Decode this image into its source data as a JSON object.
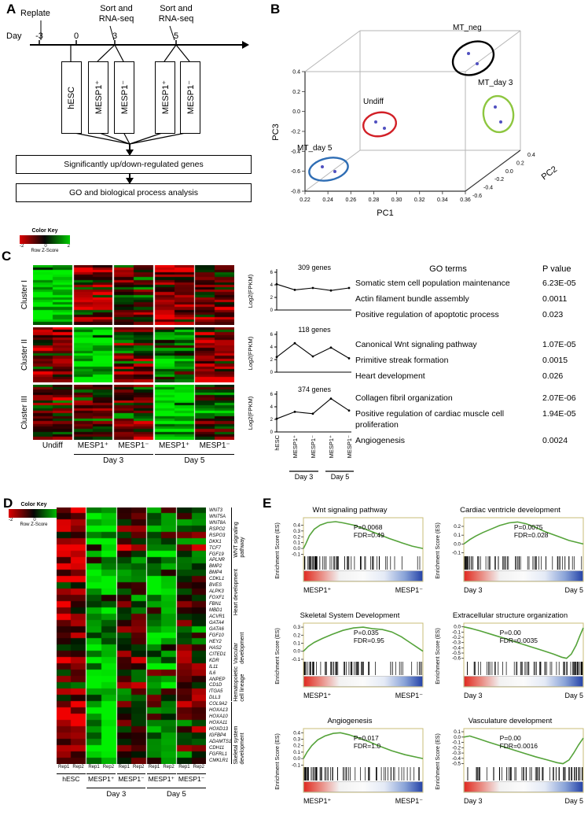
{
  "panelA": {
    "label": "A",
    "replate": "Replate",
    "sort1": "Sort and\nRNA-seq",
    "sort2": "Sort and\nRNA-seq",
    "day": "Day",
    "days": [
      "-3",
      "0",
      "3",
      "5"
    ],
    "boxes": [
      "hESC",
      "MESP1⁺",
      "MESP1⁻",
      "MESP1⁺",
      "MESP1⁻"
    ],
    "flow1": "Significantly up/down-regulated genes",
    "flow2": "GO and biological process analysis"
  },
  "panelB": {
    "label": "B",
    "groups": [
      {
        "name": "MT_neg",
        "color": "#000000"
      },
      {
        "name": "Undiff",
        "color": "#d22027"
      },
      {
        "name": "MT_day 3",
        "color": "#8dc63f"
      },
      {
        "name": "MT_day 5",
        "color": "#2e6db4"
      }
    ],
    "axes": {
      "x": "PC1",
      "y": "PC3",
      "z": "PC2"
    },
    "ticks": {
      "pc1": [
        "0.22",
        "0.24",
        "0.26",
        "0.28",
        "0.30",
        "0.32",
        "0.34",
        "0.36"
      ],
      "pc3": [
        "0.4",
        "0.2",
        "0.0",
        "-0.2",
        "-0.4",
        "-0.6",
        "-0.8"
      ],
      "pc2": [
        "-0.6",
        "-0.4",
        "-0.2",
        "0.0",
        "0.2",
        "0.4"
      ]
    }
  },
  "color_key": {
    "title": "Color Key",
    "ticks": [
      "-2",
      "0",
      "2"
    ],
    "axis": "Row Z-Score"
  },
  "panelC": {
    "label": "C",
    "clusters": [
      "Cluster I",
      "Cluster II",
      "Cluster III"
    ],
    "gene_counts": [
      "309  genes",
      "118  genes",
      "374  genes"
    ],
    "ylabel": "Log2(FPKM)",
    "heat_xlabels": [
      "Undiff",
      "MESP1⁺",
      "MESP1⁻",
      "MESP1⁺",
      "MESP1⁻"
    ],
    "line_xlabels": [
      "hESC",
      "MESP1⁺",
      "MESP1⁻",
      "MESP1⁺",
      "MESP1⁻"
    ],
    "day_labels": [
      "Day 3",
      "Day 5"
    ],
    "go_header": {
      "terms": "GO terms",
      "p": "P value"
    },
    "go_groups": [
      [
        {
          "term": "Somatic stem cell population maintenance",
          "p": "6.23E-05"
        },
        {
          "term": "Actin filament bundle assembly",
          "p": "0.0011"
        },
        {
          "term": "Positive regulation of apoptotic process",
          "p": "0.023"
        }
      ],
      [
        {
          "term": "Canonical Wnt signaling pathway",
          "p": "1.07E-05"
        },
        {
          "term": "Primitive streak formation",
          "p": "0.0015"
        },
        {
          "term": "Heart development",
          "p": "0.026"
        }
      ],
      [
        {
          "term": "Collagen fibril organization",
          "p": "2.07E-06"
        },
        {
          "term": "Positive regulation of cardiac muscle cell proliferation",
          "p": "1.94E-05"
        },
        {
          "term": "Angiogenesis",
          "p": "0.0024"
        }
      ]
    ]
  },
  "panelD": {
    "label": "D",
    "genes": [
      "WNT3",
      "WNT5A",
      "WNT8A",
      "RSPO2",
      "RSPO3",
      "DKK1",
      "TCF7",
      "FGF19",
      "APLNR",
      "BMP2",
      "BMP4",
      "CDKL1",
      "BVES",
      "ALPK3",
      "FOXF1",
      "FBN1",
      "MBD1",
      "ACVR1",
      "GATA4",
      "GATA6",
      "FGF10",
      "HEY2",
      "HAS2",
      "CITED1",
      "KDR",
      "IL11",
      "IL6",
      "ANPEP",
      "CD1D",
      "ITGA5",
      "DLL3",
      "COL9A2",
      "HOXA13",
      "HOXA10",
      "HOXA11",
      "HOXD13",
      "IGFBP4",
      "ADAMTS1",
      "CDH11",
      "FGFRL1",
      "CMKLR1"
    ],
    "categories": [
      {
        "name": "WNT signaling pathway",
        "start": 0,
        "end": 7
      },
      {
        "name": "Heart development",
        "start": 8,
        "end": 18
      },
      {
        "name": "Vascular development",
        "start": 19,
        "end": 24
      },
      {
        "name": "Hematopoietic cell lineage",
        "start": 25,
        "end": 30
      },
      {
        "name": "Skeletal system development",
        "start": 31,
        "end": 40
      }
    ],
    "rep_labels": [
      "Rep1",
      "Rep2",
      "Rep1",
      "Rep2",
      "Rep1",
      "Rep2",
      "Rep1",
      "Rep2",
      "Rep1",
      "Rep2"
    ],
    "group_labels": [
      "hESC",
      "MESP1⁺",
      "MESP1⁻",
      "MESP1⁺",
      "MESP1⁻"
    ],
    "day_labels": [
      "Day 3",
      "Day 5"
    ]
  },
  "panelE": {
    "label": "E",
    "ylabel": "Enrichment Score (ES)",
    "plots": [
      {
        "title": "Wnt signaling pathway",
        "p": "P=0.0068",
        "fdr": "FDR=0.49",
        "left": "MESP1⁺",
        "right": "MESP1⁻"
      },
      {
        "title": "Cardiac ventricle development",
        "p": "P=0.0075",
        "fdr": "FDR=0.028",
        "left": "Day 3",
        "right": "Day 5"
      },
      {
        "title": "Skeletal System Development",
        "p": "P=0.035",
        "fdr": "FDR=0.95",
        "left": "MESP1⁺",
        "right": "MESP1⁻"
      },
      {
        "title": "Extracellular structure organization",
        "p": "P=0.00",
        "fdr": "FDR=0.0035",
        "left": "Day 3",
        "right": "Day 5"
      },
      {
        "title": "Angiogenesis",
        "p": "P=0.017",
        "fdr": "FDR=1.0",
        "left": "MESP1⁺",
        "right": "MESP1⁻"
      },
      {
        "title": "Vasculature development",
        "p": "P=0.00",
        "fdr": "FDR=0.0016",
        "left": "Day 3",
        "right": "Day 5"
      }
    ]
  },
  "heatmaps": {
    "c1": {
      "rows": 24,
      "seed": 101,
      "gap": 2,
      "group_bias": [
        0.85,
        -0.35,
        -0.1,
        -0.45,
        -0.25
      ]
    },
    "c2": {
      "rows": 21,
      "seed": 202,
      "gap": 2,
      "group_bias": [
        -0.5,
        0.85,
        -0.15,
        0.25,
        -0.35
      ]
    },
    "c3": {
      "rows": 21,
      "seed": 303,
      "gap": 2,
      "group_bias": [
        -0.4,
        -0.25,
        -0.15,
        0.9,
        0.15
      ]
    },
    "d": {
      "rows": 41,
      "seed": 404,
      "gap": 1.5,
      "group_bias": [
        -0.55,
        0.8,
        -0.15,
        0.45,
        -0.05
      ]
    }
  },
  "chart_data": [
    {
      "id": "pca_3d",
      "type": "scatter",
      "axis_labels": {
        "x": "PC1",
        "y": "PC3",
        "depth": "PC2"
      },
      "x_range": [
        0.22,
        0.36
      ],
      "y_range": [
        -0.8,
        0.4
      ],
      "depth_range": [
        -0.6,
        0.4
      ],
      "groups": [
        {
          "name": "MT_neg",
          "ellipse_color": "#000000",
          "points": [
            [
              0.3,
              0.32
            ],
            [
              0.315,
              0.27
            ]
          ]
        },
        {
          "name": "Undiff",
          "ellipse_color": "#d22027",
          "points": [
            [
              0.275,
              0.12
            ],
            [
              0.285,
              0.07
            ]
          ]
        },
        {
          "name": "MT_day 3",
          "ellipse_color": "#8dc63f",
          "points": [
            [
              0.345,
              0.18
            ],
            [
              0.35,
              0.1
            ]
          ]
        },
        {
          "name": "MT_day 5",
          "ellipse_color": "#2e6db4",
          "points": [
            [
              0.245,
              -0.42
            ],
            [
              0.26,
              -0.45
            ]
          ]
        }
      ]
    },
    {
      "id": "cluster_mean_expression",
      "type": "line",
      "categories": [
        "hESC",
        "MESP1+ Day 3",
        "MESP1- Day 3",
        "MESP1+ Day 5",
        "MESP1- Day 5"
      ],
      "ylabel": "Log2(FPKM)",
      "ylim": [
        0,
        6
      ],
      "yticks": [
        0,
        2,
        4,
        6
      ],
      "series": [
        {
          "name": "Cluster I (309 genes)",
          "values": [
            4.1,
            3.2,
            3.5,
            3.1,
            3.5
          ]
        },
        {
          "name": "Cluster II (118 genes)",
          "values": [
            2.4,
            4.6,
            2.5,
            3.9,
            2.2
          ]
        },
        {
          "name": "Cluster III (374 genes)",
          "values": [
            2.1,
            3.2,
            2.9,
            5.3,
            3.4
          ]
        }
      ]
    },
    {
      "id": "gsea",
      "type": "line",
      "plots": [
        {
          "name": "Wnt signaling pathway",
          "ylim": [
            -0.12,
            0.5
          ],
          "yticks": [
            0.4,
            0.3,
            0.2,
            0.1,
            0.0,
            -0.1
          ],
          "bias": "left",
          "tx": 0.42,
          "curve": [
            [
              0,
              0
            ],
            [
              0.02,
              0.08
            ],
            [
              0.05,
              0.22
            ],
            [
              0.09,
              0.33
            ],
            [
              0.14,
              0.4
            ],
            [
              0.2,
              0.445
            ],
            [
              0.27,
              0.46
            ],
            [
              0.33,
              0.44
            ],
            [
              0.42,
              0.4
            ],
            [
              0.52,
              0.33
            ],
            [
              0.62,
              0.25
            ],
            [
              0.72,
              0.17
            ],
            [
              0.82,
              0.1
            ],
            [
              0.91,
              0.04
            ],
            [
              1,
              0
            ]
          ]
        },
        {
          "name": "Cardiac ventricle development",
          "ylim": [
            -0.13,
            0.28
          ],
          "yticks": [
            0.2,
            0.1,
            0.0,
            -0.1
          ],
          "bias": "left",
          "tx": 0.42,
          "curve": [
            [
              0,
              0
            ],
            [
              0.05,
              0.05
            ],
            [
              0.1,
              0.09
            ],
            [
              0.16,
              0.13
            ],
            [
              0.23,
              0.17
            ],
            [
              0.3,
              0.21
            ],
            [
              0.38,
              0.24
            ],
            [
              0.45,
              0.25
            ],
            [
              0.52,
              0.23
            ],
            [
              0.6,
              0.19
            ],
            [
              0.68,
              0.14
            ],
            [
              0.78,
              0.09
            ],
            [
              0.88,
              0.04
            ],
            [
              1,
              0
            ]
          ]
        },
        {
          "name": "Skeletal System Development",
          "ylim": [
            -0.12,
            0.33
          ],
          "yticks": [
            0.3,
            0.2,
            0.1,
            0.0,
            -0.1
          ],
          "bias": "left",
          "tx": 0.42,
          "curve": [
            [
              0,
              0
            ],
            [
              0.04,
              0.06
            ],
            [
              0.09,
              0.11
            ],
            [
              0.16,
              0.16
            ],
            [
              0.24,
              0.21
            ],
            [
              0.33,
              0.26
            ],
            [
              0.42,
              0.29
            ],
            [
              0.5,
              0.3
            ],
            [
              0.58,
              0.28
            ],
            [
              0.66,
              0.27
            ],
            [
              0.74,
              0.24
            ],
            [
              0.82,
              0.18
            ],
            [
              0.9,
              0.1
            ],
            [
              0.96,
              0.04
            ],
            [
              1,
              0
            ]
          ]
        },
        {
          "name": "Extracellular structure organization",
          "ylim": [
            -0.65,
            0.04
          ],
          "yticks": [
            0.0,
            -0.1,
            -0.2,
            -0.3,
            -0.4,
            -0.5,
            -0.6
          ],
          "bias": "right",
          "tx": 0.3,
          "curve": [
            [
              0,
              0
            ],
            [
              0.06,
              -0.03
            ],
            [
              0.14,
              -0.08
            ],
            [
              0.24,
              -0.15
            ],
            [
              0.34,
              -0.22
            ],
            [
              0.45,
              -0.3
            ],
            [
              0.56,
              -0.38
            ],
            [
              0.66,
              -0.45
            ],
            [
              0.75,
              -0.52
            ],
            [
              0.82,
              -0.58
            ],
            [
              0.86,
              -0.6
            ],
            [
              0.9,
              -0.52
            ],
            [
              0.94,
              -0.35
            ],
            [
              0.97,
              -0.18
            ],
            [
              1,
              -0.02
            ]
          ]
        },
        {
          "name": "Angiogenesis",
          "ylim": [
            -0.12,
            0.44
          ],
          "yticks": [
            0.4,
            0.3,
            0.2,
            0.1,
            0.0,
            -0.1
          ],
          "bias": "left",
          "tx": 0.42,
          "curve": [
            [
              0,
              0
            ],
            [
              0.03,
              0.1
            ],
            [
              0.07,
              0.2
            ],
            [
              0.12,
              0.29
            ],
            [
              0.18,
              0.35
            ],
            [
              0.25,
              0.39
            ],
            [
              0.31,
              0.4
            ],
            [
              0.38,
              0.37
            ],
            [
              0.46,
              0.32
            ],
            [
              0.55,
              0.26
            ],
            [
              0.64,
              0.19
            ],
            [
              0.74,
              0.12
            ],
            [
              0.85,
              0.06
            ],
            [
              1,
              0
            ]
          ]
        },
        {
          "name": "Vasculature development",
          "ylim": [
            -0.55,
            0.13
          ],
          "yticks": [
            0.1,
            0.0,
            -0.1,
            -0.2,
            -0.3,
            -0.4,
            -0.5
          ],
          "bias": "right",
          "tx": 0.3,
          "curve": [
            [
              0,
              0
            ],
            [
              0.05,
              0.02
            ],
            [
              0.12,
              -0.03
            ],
            [
              0.2,
              -0.09
            ],
            [
              0.3,
              -0.16
            ],
            [
              0.4,
              -0.23
            ],
            [
              0.5,
              -0.3
            ],
            [
              0.6,
              -0.37
            ],
            [
              0.7,
              -0.43
            ],
            [
              0.78,
              -0.48
            ],
            [
              0.83,
              -0.5
            ],
            [
              0.88,
              -0.43
            ],
            [
              0.92,
              -0.3
            ],
            [
              0.96,
              -0.15
            ],
            [
              1,
              -0.02
            ]
          ]
        }
      ]
    }
  ]
}
